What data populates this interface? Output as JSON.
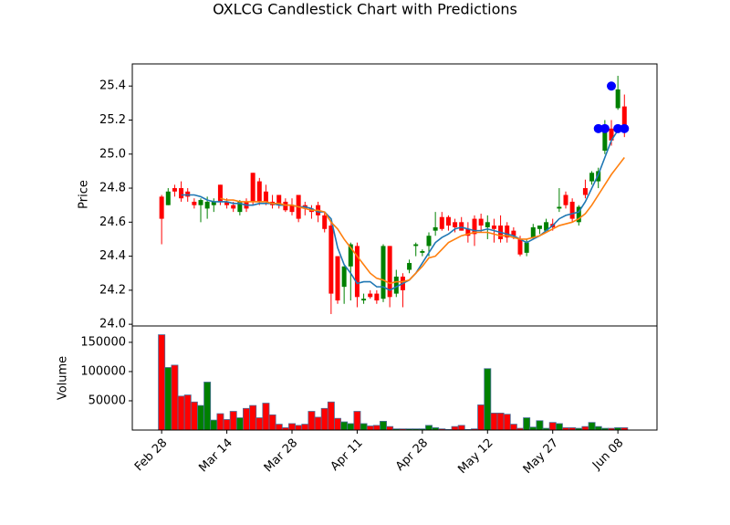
{
  "chart_data": {
    "type": "candlestick",
    "title": "OXLCG Candlestick Chart with Predictions",
    "ylabel": "Price",
    "volume_label": "Volume",
    "categories": [
      "Feb 28",
      null,
      null,
      null,
      null,
      null,
      null,
      null,
      null,
      null,
      "Mar 14",
      null,
      null,
      null,
      null,
      null,
      null,
      null,
      null,
      null,
      "Mar 28",
      null,
      null,
      null,
      null,
      null,
      null,
      null,
      null,
      null,
      "Apr 11",
      null,
      null,
      null,
      null,
      null,
      null,
      null,
      null,
      null,
      "Apr 28",
      null,
      null,
      null,
      null,
      null,
      null,
      null,
      null,
      null,
      "May 12",
      null,
      null,
      null,
      null,
      null,
      null,
      null,
      null,
      null,
      "May 27",
      null,
      null,
      null,
      null,
      null,
      null,
      null,
      null,
      null,
      "Jun 08",
      null
    ],
    "xlim": [
      -4.5,
      76
    ],
    "ylim": [
      23.99,
      25.53
    ],
    "yticks": [
      {
        "value": 24,
        "label": "24.0"
      },
      24.2,
      24.4,
      24.6,
      24.8,
      {
        "value": 25,
        "label": "25.0"
      },
      25.2,
      25.4
    ],
    "volume_ylim": [
      0,
      178000
    ],
    "volume_ticks": [
      50000,
      100000,
      150000
    ],
    "up_color": "#008000",
    "down_color": "#ff0000",
    "open": [
      24.75,
      24.7,
      24.8,
      24.8,
      24.78,
      24.72,
      24.7,
      24.68,
      24.7,
      24.82,
      24.72,
      24.7,
      24.66,
      24.72,
      24.89,
      24.84,
      24.78,
      24.72,
      24.76,
      24.72,
      24.7,
      24.76,
      24.7,
      24.68,
      24.7,
      24.64,
      24.58,
      24.4,
      24.22,
      24.34,
      24.46,
      24.14,
      24.18,
      24.18,
      24.15,
      24.46,
      24.18,
      24.28,
      24.32,
      24.46,
      24.42,
      24.46,
      24.55,
      24.63,
      24.63,
      24.6,
      24.6,
      24.56,
      24.62,
      24.62,
      24.57,
      24.58,
      24.58,
      24.58,
      24.55,
      24.5,
      24.42,
      24.51,
      24.56,
      24.55,
      24.59,
      24.68,
      24.76,
      24.72,
      24.6,
      24.8,
      24.84,
      24.84,
      25.02,
      25.15,
      25.27,
      25.28
    ],
    "high": [
      24.76,
      24.8,
      24.82,
      24.84,
      24.8,
      24.74,
      24.74,
      24.75,
      24.74,
      24.82,
      24.74,
      24.72,
      24.73,
      24.74,
      24.89,
      24.86,
      24.82,
      24.76,
      24.76,
      24.74,
      24.74,
      24.76,
      24.72,
      24.7,
      24.72,
      24.66,
      24.6,
      24.4,
      24.34,
      24.48,
      24.48,
      24.18,
      24.2,
      24.2,
      24.47,
      24.46,
      24.32,
      24.3,
      24.38,
      24.48,
      24.44,
      24.54,
      24.66,
      24.66,
      24.64,
      24.62,
      24.63,
      24.6,
      24.64,
      24.65,
      24.64,
      24.62,
      24.64,
      24.6,
      24.57,
      24.52,
      24.5,
      24.59,
      24.58,
      24.62,
      24.62,
      24.8,
      24.78,
      24.74,
      24.7,
      24.85,
      24.9,
      24.92,
      25.2,
      25.2,
      25.46,
      25.35
    ],
    "low": [
      24.47,
      24.7,
      24.75,
      24.72,
      24.72,
      24.68,
      24.6,
      24.62,
      24.66,
      24.7,
      24.68,
      24.66,
      24.64,
      24.66,
      24.7,
      24.7,
      24.7,
      24.68,
      24.68,
      24.66,
      24.64,
      24.6,
      24.64,
      24.62,
      24.6,
      24.54,
      24.06,
      24.12,
      24.12,
      24.14,
      24.1,
      24.12,
      24.15,
      24.12,
      24.13,
      24.1,
      24.16,
      24.1,
      24.3,
      24.4,
      24.4,
      24.4,
      24.52,
      24.55,
      24.55,
      24.54,
      24.55,
      24.48,
      24.46,
      24.54,
      24.5,
      24.48,
      24.48,
      24.48,
      24.5,
      24.4,
      24.4,
      24.5,
      24.53,
      24.55,
      24.55,
      24.66,
      24.68,
      24.6,
      24.58,
      24.74,
      24.82,
      24.8,
      25.0,
      25.05,
      25.26,
      25.1
    ],
    "close": [
      24.62,
      24.78,
      24.78,
      24.74,
      24.75,
      24.7,
      24.73,
      24.72,
      24.72,
      24.72,
      24.7,
      24.68,
      24.72,
      24.68,
      24.72,
      24.72,
      24.72,
      24.7,
      24.7,
      24.67,
      24.66,
      24.62,
      24.68,
      24.66,
      24.64,
      24.56,
      24.18,
      24.14,
      24.34,
      24.47,
      24.16,
      24.15,
      24.16,
      24.14,
      24.46,
      24.16,
      24.28,
      24.2,
      24.36,
      24.47,
      24.43,
      24.52,
      24.57,
      24.56,
      24.58,
      24.57,
      24.55,
      24.52,
      24.53,
      24.58,
      24.6,
      24.56,
      24.5,
      24.51,
      24.52,
      24.41,
      24.48,
      24.57,
      24.58,
      24.6,
      24.57,
      24.69,
      24.7,
      24.62,
      24.69,
      24.76,
      24.89,
      24.9,
      25.15,
      25.08,
      25.38,
      25.15
    ],
    "volume": [
      163000,
      107000,
      111000,
      58000,
      60000,
      48000,
      42000,
      82000,
      17000,
      28000,
      18000,
      32000,
      21000,
      37000,
      42000,
      21000,
      46000,
      26000,
      10000,
      4000,
      11000,
      8000,
      10000,
      32000,
      22000,
      37000,
      48000,
      20000,
      14000,
      11000,
      32000,
      11000,
      7000,
      8000,
      15000,
      6000,
      2000,
      2000,
      2000,
      2000,
      2000,
      8000,
      4000,
      2000,
      1000,
      6000,
      8000,
      1000,
      2000,
      43000,
      105000,
      29000,
      29000,
      27000,
      10000,
      3000,
      21000,
      5000,
      16000,
      3000,
      13000,
      11000,
      4000,
      4000,
      3000,
      6000,
      13000,
      6000,
      3000,
      3000,
      4000,
      4000
    ],
    "lines": [
      {
        "color": "#1f77b4",
        "values": [
          null,
          null,
          null,
          24.76,
          24.76,
          24.76,
          24.75,
          24.73,
          24.72,
          24.72,
          24.72,
          24.71,
          24.71,
          24.7,
          24.7,
          24.71,
          24.71,
          24.71,
          24.7,
          24.7,
          24.7,
          24.69,
          24.69,
          24.68,
          24.66,
          24.66,
          24.62,
          24.45,
          24.35,
          24.3,
          24.24,
          24.25,
          24.25,
          24.22,
          24.22,
          24.2,
          24.22,
          24.24,
          24.26,
          24.3,
          24.36,
          24.42,
          24.48,
          24.51,
          24.53,
          24.56,
          24.57,
          24.56,
          24.55,
          24.55,
          24.56,
          24.55,
          24.54,
          24.53,
          24.52,
          24.5,
          24.48,
          24.5,
          24.52,
          24.55,
          24.58,
          24.62,
          24.64,
          24.65,
          24.66,
          24.72,
          24.8,
          24.88,
          24.98,
          25.08,
          25.14,
          25.16
        ]
      },
      {
        "color": "#ff7f0e",
        "values": [
          null,
          null,
          null,
          null,
          null,
          null,
          null,
          null,
          null,
          24.74,
          24.73,
          24.73,
          24.72,
          24.72,
          24.72,
          24.72,
          24.72,
          24.71,
          24.71,
          24.7,
          24.7,
          24.69,
          24.68,
          24.67,
          24.67,
          24.66,
          24.6,
          24.56,
          24.5,
          24.45,
          24.4,
          24.35,
          24.3,
          24.27,
          24.26,
          24.24,
          24.25,
          24.25,
          24.26,
          24.3,
          24.34,
          24.39,
          24.4,
          24.44,
          24.48,
          24.5,
          24.52,
          24.53,
          24.54,
          24.54,
          24.54,
          24.53,
          24.52,
          24.52,
          24.51,
          24.5,
          24.5,
          24.51,
          24.52,
          24.54,
          24.56,
          24.58,
          24.59,
          24.6,
          24.62,
          24.65,
          24.7,
          24.76,
          24.82,
          24.88,
          24.93,
          24.98
        ]
      }
    ],
    "predictions": {
      "color": "#0000ff",
      "values": [
        null,
        null,
        null,
        null,
        null,
        null,
        null,
        null,
        null,
        null,
        null,
        null,
        null,
        null,
        null,
        null,
        null,
        null,
        null,
        null,
        null,
        null,
        null,
        null,
        null,
        null,
        null,
        null,
        null,
        null,
        null,
        null,
        null,
        null,
        null,
        null,
        null,
        null,
        null,
        null,
        null,
        null,
        null,
        null,
        null,
        null,
        null,
        null,
        null,
        null,
        null,
        null,
        null,
        null,
        null,
        null,
        null,
        null,
        null,
        null,
        null,
        null,
        null,
        null,
        null,
        null,
        null,
        25.15,
        25.15,
        25.4,
        25.15,
        25.15
      ]
    }
  }
}
